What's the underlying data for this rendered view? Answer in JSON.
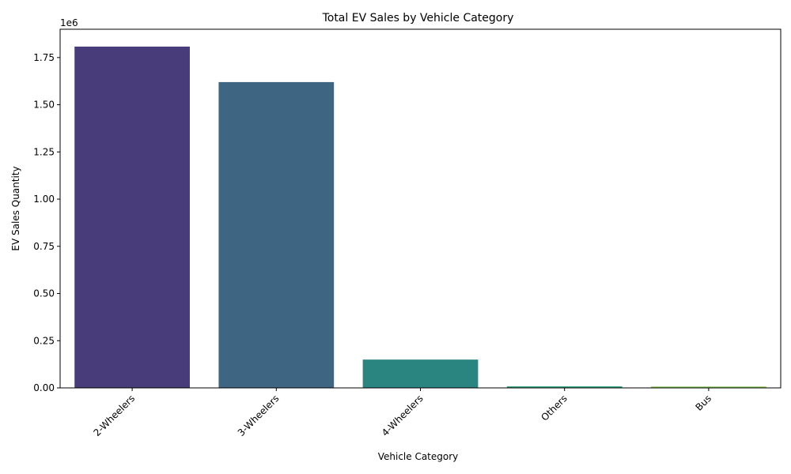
{
  "chart_data": {
    "type": "bar",
    "title": "Total EV Sales by Vehicle Category",
    "xlabel": "Vehicle Category",
    "ylabel": "EV Sales Quantity",
    "y_offset_label": "1e6",
    "ylim": [
      0,
      1900000
    ],
    "yticks": [
      0,
      250000,
      500000,
      750000,
      1000000,
      1250000,
      1500000,
      1750000
    ],
    "ytick_labels": [
      "0.00",
      "0.25",
      "0.50",
      "0.75",
      "1.00",
      "1.25",
      "1.50",
      "1.75"
    ],
    "categories": [
      "2-Wheelers",
      "3-Wheelers",
      "4-Wheelers",
      "Others",
      "Bus"
    ],
    "values": [
      1808000,
      1620000,
      150000,
      8000,
      7000
    ],
    "colors": [
      "#483d7a",
      "#3e6683",
      "#2a8581",
      "#2fa07a",
      "#87c454"
    ],
    "grid": false
  }
}
